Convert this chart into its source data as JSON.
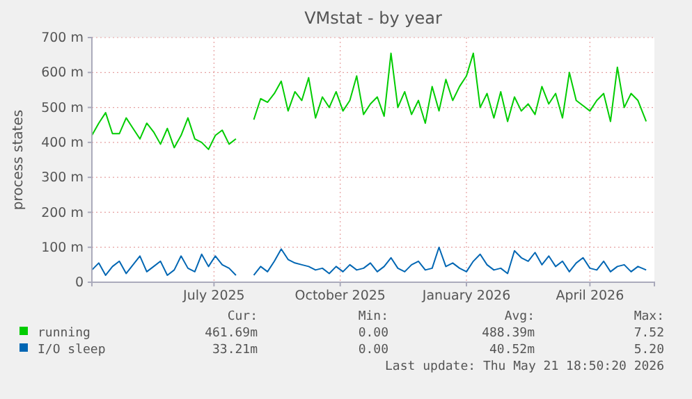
{
  "chart_data": {
    "type": "line",
    "title": "VMstat - by year",
    "ylabel": "process states",
    "x": [
      "2025-04-03",
      "2025-04-08",
      "2025-04-13",
      "2025-04-18",
      "2025-04-23",
      "2025-04-28",
      "2025-05-03",
      "2025-05-08",
      "2025-05-13",
      "2025-05-18",
      "2025-05-23",
      "2025-05-28",
      "2025-06-02",
      "2025-06-07",
      "2025-06-12",
      "2025-06-17",
      "2025-06-22",
      "2025-06-27",
      "2025-07-02",
      "2025-07-07",
      "2025-07-12",
      "2025-07-17",
      "2025-07-23",
      "2025-07-30",
      "2025-08-04",
      "2025-08-09",
      "2025-08-14",
      "2025-08-19",
      "2025-08-24",
      "2025-08-29",
      "2025-09-03",
      "2025-09-08",
      "2025-09-13",
      "2025-09-18",
      "2025-09-23",
      "2025-09-28",
      "2025-10-03",
      "2025-10-08",
      "2025-10-13",
      "2025-10-18",
      "2025-10-23",
      "2025-10-28",
      "2025-11-02",
      "2025-11-07",
      "2025-11-12",
      "2025-11-17",
      "2025-11-22",
      "2025-11-27",
      "2025-12-02",
      "2025-12-07",
      "2025-12-12",
      "2025-12-17",
      "2025-12-22",
      "2025-12-27",
      "2026-01-01",
      "2026-01-06",
      "2026-01-11",
      "2026-01-16",
      "2026-01-21",
      "2026-01-26",
      "2026-01-31",
      "2026-02-05",
      "2026-02-10",
      "2026-02-15",
      "2026-02-20",
      "2026-02-25",
      "2026-03-02",
      "2026-03-07",
      "2026-03-12",
      "2026-03-17",
      "2026-03-22",
      "2026-03-27",
      "2026-04-01",
      "2026-04-06",
      "2026-04-11",
      "2026-04-16",
      "2026-04-21",
      "2026-04-26",
      "2026-05-01",
      "2026-05-06",
      "2026-05-12"
    ],
    "series": [
      {
        "name": "running",
        "color": "#00cc00",
        "values": [
          420,
          455,
          485,
          425,
          425,
          470,
          440,
          410,
          455,
          430,
          395,
          440,
          385,
          420,
          470,
          410,
          400,
          380,
          420,
          435,
          395,
          410,
          null,
          465,
          525,
          515,
          540,
          575,
          490,
          545,
          520,
          585,
          470,
          530,
          500,
          545,
          490,
          520,
          590,
          480,
          510,
          530,
          475,
          655,
          500,
          545,
          480,
          520,
          455,
          560,
          490,
          580,
          520,
          560,
          590,
          655,
          500,
          540,
          470,
          545,
          460,
          530,
          490,
          510,
          480,
          560,
          510,
          540,
          470,
          600,
          520,
          505,
          490,
          520,
          540,
          460,
          615,
          500,
          540,
          520,
          460
        ]
      },
      {
        "name": "I/O sleep",
        "color": "#0066b3",
        "values": [
          35,
          55,
          20,
          45,
          60,
          25,
          50,
          75,
          30,
          45,
          60,
          20,
          35,
          75,
          40,
          30,
          80,
          45,
          75,
          50,
          40,
          20,
          null,
          20,
          45,
          30,
          60,
          95,
          65,
          55,
          50,
          45,
          35,
          40,
          25,
          45,
          30,
          50,
          35,
          40,
          55,
          30,
          45,
          70,
          40,
          30,
          50,
          60,
          35,
          40,
          100,
          45,
          55,
          40,
          30,
          60,
          80,
          50,
          35,
          40,
          25,
          90,
          70,
          60,
          85,
          50,
          75,
          45,
          60,
          30,
          55,
          70,
          40,
          35,
          60,
          30,
          45,
          50,
          30,
          45,
          35
        ]
      }
    ],
    "xlim": [
      "2025-04-03",
      "2026-05-18"
    ],
    "xticks": [
      {
        "value": "2025-07-01",
        "label": "July 2025"
      },
      {
        "value": "2025-10-01",
        "label": "October 2025"
      },
      {
        "value": "2026-01-01",
        "label": "January 2026"
      },
      {
        "value": "2026-04-01",
        "label": "April 2026"
      }
    ],
    "ylim": [
      0,
      700
    ],
    "yticks": [
      0,
      {
        "value": 100,
        "label": "100 m"
      },
      {
        "value": 200,
        "label": "200 m"
      },
      {
        "value": 300,
        "label": "300 m"
      },
      {
        "value": 400,
        "label": "400 m"
      },
      {
        "value": 500,
        "label": "500 m"
      },
      {
        "value": 600,
        "label": "600 m"
      },
      {
        "value": 700,
        "label": "700 m"
      }
    ],
    "grid": true,
    "legend": "bottom",
    "annotations": [
      "Cur:",
      "Min:",
      "Avg:",
      "Max:",
      "461.69m",
      "0.00",
      "488.39m",
      "7.52",
      "33.21m",
      "0.00",
      "40.52m",
      "5.20",
      "Last update: Thu May 21 18:50:20 2026"
    ]
  }
}
